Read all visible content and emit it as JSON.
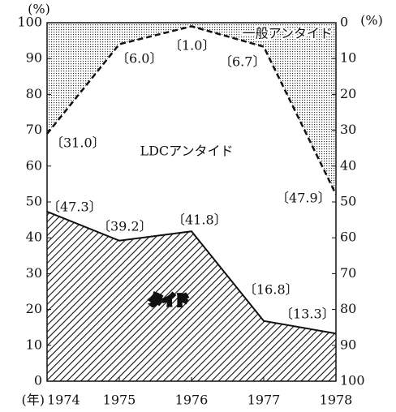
{
  "chart_data": {
    "type": "area",
    "x": [
      1974,
      1975,
      1976,
      1977,
      1978
    ],
    "xlim": [
      1974,
      1978
    ],
    "xticks": [
      1974,
      1975,
      1976,
      1977,
      1978
    ],
    "x_unit_label": "(年)",
    "ylim": [
      0,
      100
    ],
    "yticks": [
      0,
      10,
      20,
      30,
      40,
      50,
      60,
      70,
      80,
      90,
      100
    ],
    "y_unit_label": "(%)",
    "y2lim": [
      100,
      0
    ],
    "y2ticks": [
      0,
      10,
      20,
      30,
      40,
      50,
      60,
      70,
      80,
      90,
      100
    ],
    "y2_unit_label": "(%)",
    "series": [
      {
        "name": "タイド",
        "color": "#111111",
        "values": [
          47.3,
          39.2,
          41.8,
          16.8,
          13.3
        ],
        "value_labels": [
          "〔47.3〕",
          "〔39.2〕",
          "〔41.8〕",
          "〔16.8〕",
          "〔13.3〕"
        ]
      },
      {
        "name": "一般アンタイド",
        "color": "#111111",
        "axis": "y2",
        "values": [
          31.0,
          6.0,
          1.0,
          6.7,
          47.9
        ],
        "value_labels": [
          "〔31.0〕",
          "〔6.0〕",
          "〔1.0〕",
          "〔6.7〕",
          "〔47.9〕"
        ]
      }
    ],
    "annotations": [
      "LDCアンタイド"
    ]
  }
}
